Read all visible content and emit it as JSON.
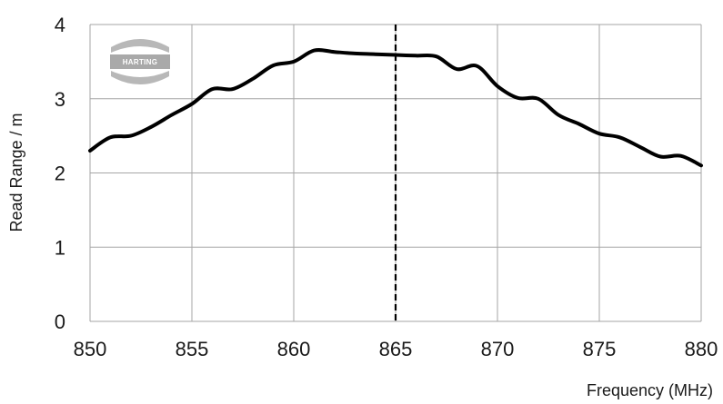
{
  "chart_data": {
    "type": "line",
    "title": "",
    "xlabel": "Frequency (MHz)",
    "ylabel": "Read Range / m",
    "xlim": [
      850,
      880
    ],
    "ylim": [
      0,
      4
    ],
    "x_ticks": [
      850,
      855,
      860,
      865,
      870,
      875,
      880
    ],
    "y_ticks": [
      0,
      1,
      2,
      3,
      4
    ],
    "x_tick_labels": [
      "850",
      "855",
      "860",
      "865",
      "870",
      "875",
      "880"
    ],
    "y_tick_labels": [
      "0",
      "1",
      "2",
      "3",
      "4"
    ],
    "grid": true,
    "legend": "none",
    "reference_line": {
      "x": 865,
      "style": "dashed"
    },
    "logo": "HARTING",
    "series": [
      {
        "color": "#000000",
        "x": [
          850,
          851,
          852,
          853,
          854,
          855,
          856,
          857,
          858,
          859,
          860,
          861,
          862,
          863,
          864,
          865,
          866,
          867,
          868,
          869,
          870,
          871,
          872,
          873,
          874,
          875,
          876,
          877,
          878,
          879,
          880
        ],
        "y": [
          2.3,
          2.48,
          2.5,
          2.62,
          2.78,
          2.93,
          3.13,
          3.13,
          3.27,
          3.45,
          3.5,
          3.65,
          3.63,
          3.61,
          3.6,
          3.59,
          3.58,
          3.57,
          3.4,
          3.44,
          3.17,
          3.01,
          3.0,
          2.78,
          2.66,
          2.53,
          2.48,
          2.35,
          2.22,
          2.23,
          2.1
        ]
      }
    ]
  }
}
